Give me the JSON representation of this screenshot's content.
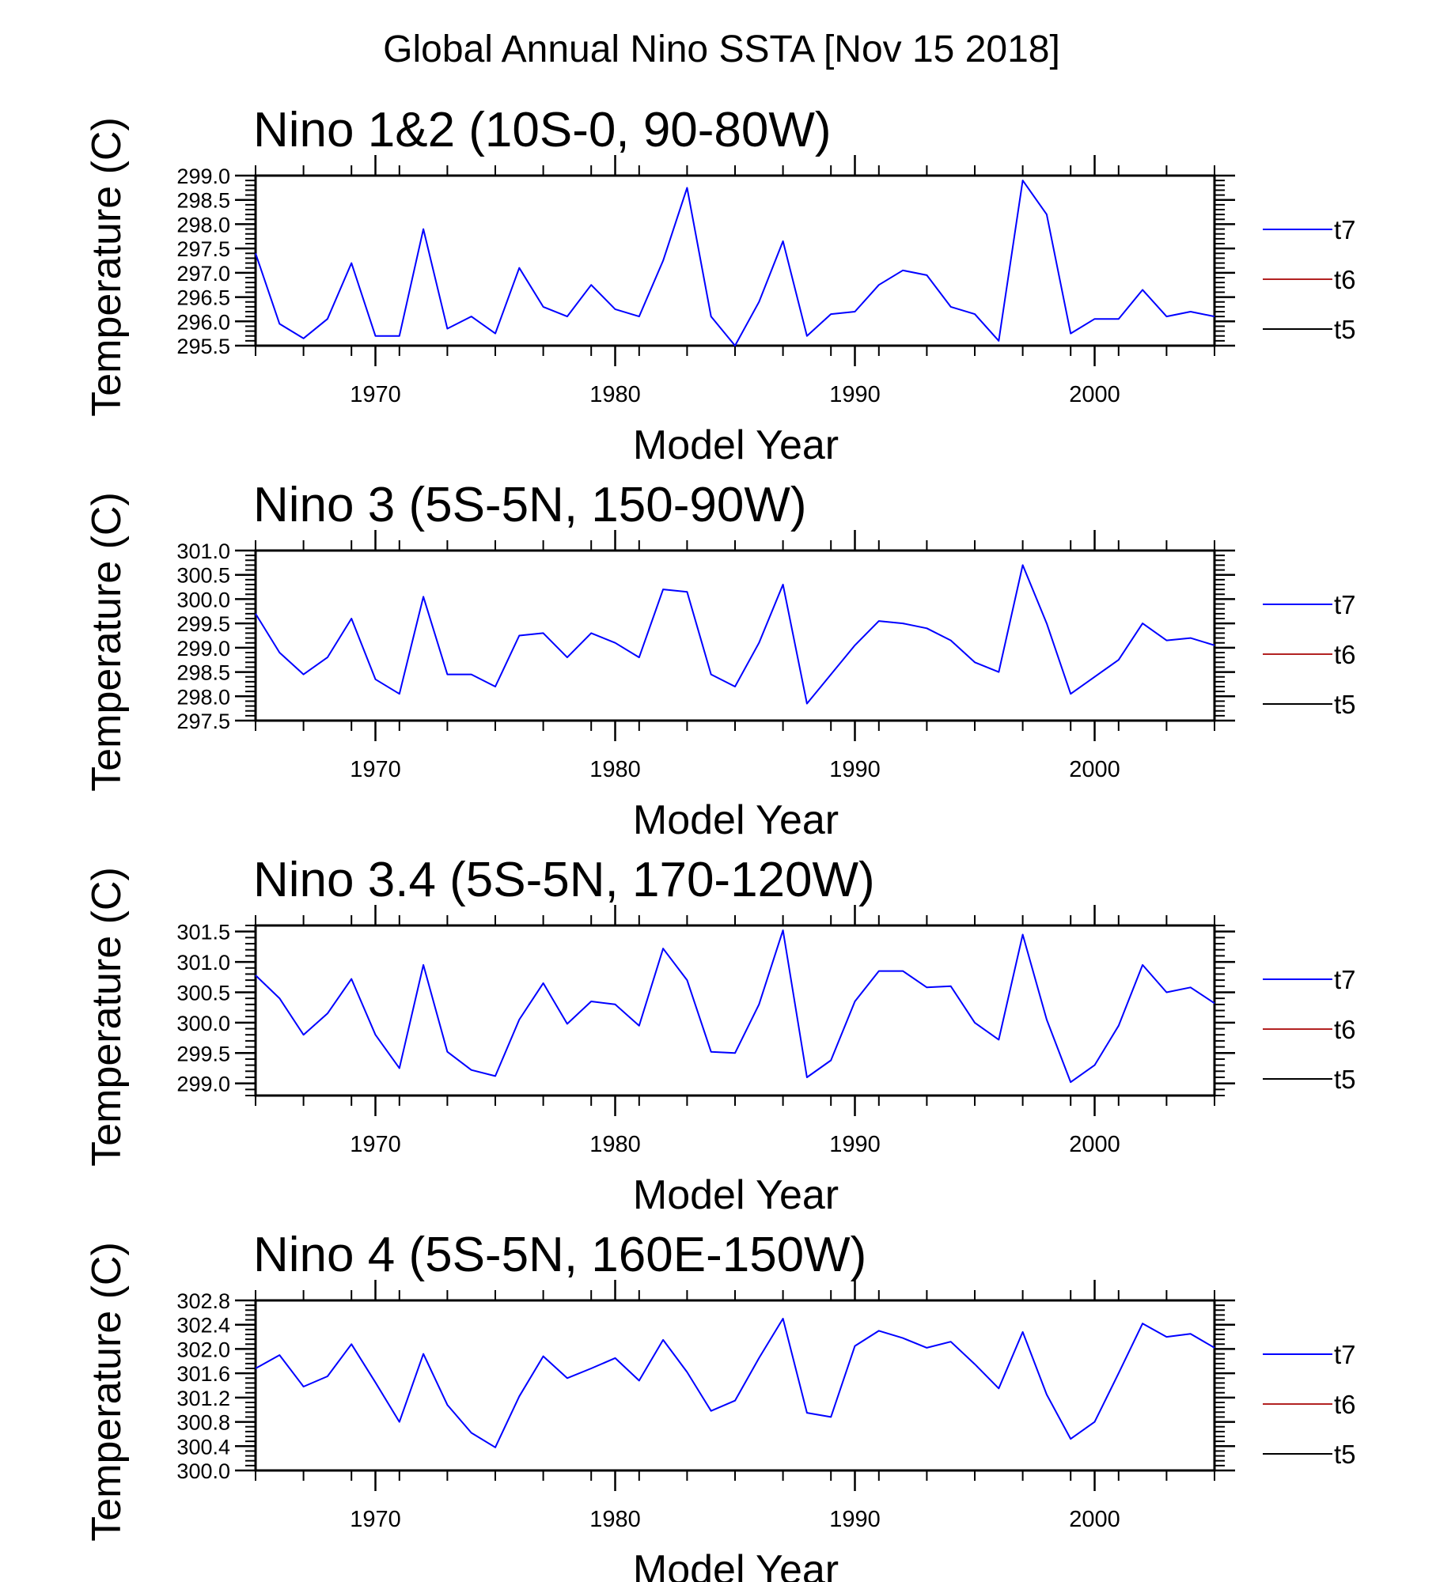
{
  "figure": {
    "title": "Global Annual Nino SSTA [Nov 15 2018]"
  },
  "chart_data": [
    {
      "type": "line",
      "title": "Nino 1&2 (10S-0, 90-80W)",
      "xlabel": "Model Year",
      "ylabel": "Temperature (C)",
      "xlim": [
        1965,
        2005
      ],
      "ylim": [
        295.5,
        299.0
      ],
      "xticks": [
        "1970",
        "1980",
        "1990",
        "2000"
      ],
      "yticks": [
        "295.5",
        "296.0",
        "296.5",
        "297.0",
        "297.5",
        "298.0",
        "298.5",
        "299.0"
      ],
      "legend": "right",
      "grid": false,
      "series": [
        {
          "name": "t7",
          "color": "#0000ff",
          "x": [
            1965,
            1966,
            1967,
            1968,
            1969,
            1970,
            1971,
            1972,
            1973,
            1974,
            1975,
            1976,
            1977,
            1978,
            1979,
            1980,
            1981,
            1982,
            1983,
            1984,
            1985,
            1986,
            1987,
            1988,
            1989,
            1990,
            1991,
            1992,
            1993,
            1994,
            1995,
            1996,
            1997,
            1998,
            1999,
            2000,
            2001,
            2002,
            2003,
            2004,
            2005
          ],
          "values": [
            297.4,
            295.95,
            295.65,
            296.05,
            297.2,
            295.7,
            295.7,
            297.9,
            295.85,
            296.1,
            295.75,
            297.1,
            296.3,
            296.1,
            296.75,
            296.25,
            296.1,
            297.25,
            298.75,
            296.1,
            295.5,
            296.4,
            297.65,
            295.7,
            296.15,
            296.2,
            296.75,
            297.05,
            296.95,
            296.3,
            296.15,
            295.6,
            298.9,
            298.2,
            295.75,
            296.05,
            296.05,
            296.65,
            296.1,
            296.2,
            296.1
          ]
        },
        {
          "name": "t6",
          "color": "#b22222",
          "values": []
        },
        {
          "name": "t5",
          "color": "#000000",
          "values": []
        }
      ]
    },
    {
      "type": "line",
      "title": "Nino 3 (5S-5N, 150-90W)",
      "xlabel": "Model Year",
      "ylabel": "Temperature (C)",
      "xlim": [
        1965,
        2005
      ],
      "ylim": [
        297.5,
        301.0
      ],
      "xticks": [
        "1970",
        "1980",
        "1990",
        "2000"
      ],
      "yticks": [
        "297.5",
        "298.0",
        "298.5",
        "299.0",
        "299.5",
        "300.0",
        "300.5",
        "301.0"
      ],
      "legend": "right",
      "grid": false,
      "series": [
        {
          "name": "t7",
          "color": "#0000ff",
          "x": [
            1965,
            1966,
            1967,
            1968,
            1969,
            1970,
            1971,
            1972,
            1973,
            1974,
            1975,
            1976,
            1977,
            1978,
            1979,
            1980,
            1981,
            1982,
            1983,
            1984,
            1985,
            1986,
            1987,
            1988,
            1989,
            1990,
            1991,
            1992,
            1993,
            1994,
            1995,
            1996,
            1997,
            1998,
            1999,
            2000,
            2001,
            2002,
            2003,
            2004,
            2005
          ],
          "values": [
            299.7,
            298.9,
            298.45,
            298.8,
            299.6,
            298.35,
            298.05,
            300.05,
            298.45,
            298.45,
            298.2,
            299.25,
            299.3,
            298.8,
            299.3,
            299.1,
            298.8,
            300.2,
            300.15,
            298.45,
            298.2,
            299.1,
            300.3,
            297.85,
            298.45,
            299.05,
            299.55,
            299.5,
            299.4,
            299.15,
            298.7,
            298.5,
            300.7,
            299.5,
            298.05,
            298.4,
            298.75,
            299.5,
            299.15,
            299.2,
            299.05
          ]
        },
        {
          "name": "t6",
          "color": "#b22222",
          "values": []
        },
        {
          "name": "t5",
          "color": "#000000",
          "values": []
        }
      ]
    },
    {
      "type": "line",
      "title": "Nino 3.4 (5S-5N, 170-120W)",
      "xlabel": "Model Year",
      "ylabel": "Temperature (C)",
      "xlim": [
        1965,
        2005
      ],
      "ylim": [
        298.8,
        301.6
      ],
      "xticks": [
        "1970",
        "1980",
        "1990",
        "2000"
      ],
      "yticks": [
        "299.0",
        "299.5",
        "300.0",
        "300.5",
        "301.0",
        "301.5"
      ],
      "legend": "right",
      "grid": false,
      "series": [
        {
          "name": "t7",
          "color": "#0000ff",
          "x": [
            1965,
            1966,
            1967,
            1968,
            1969,
            1970,
            1971,
            1972,
            1973,
            1974,
            1975,
            1976,
            1977,
            1978,
            1979,
            1980,
            1981,
            1982,
            1983,
            1984,
            1985,
            1986,
            1987,
            1988,
            1989,
            1990,
            1991,
            1992,
            1993,
            1994,
            1995,
            1996,
            1997,
            1998,
            1999,
            2000,
            2001,
            2002,
            2003,
            2004,
            2005
          ],
          "values": [
            300.78,
            300.4,
            299.8,
            300.15,
            300.72,
            299.8,
            299.25,
            300.95,
            299.52,
            299.22,
            299.12,
            300.05,
            300.65,
            299.98,
            300.35,
            300.3,
            299.95,
            301.22,
            300.7,
            299.52,
            299.5,
            300.3,
            301.52,
            299.1,
            299.38,
            300.35,
            300.85,
            300.85,
            300.58,
            300.6,
            300.0,
            299.72,
            301.45,
            300.05,
            299.02,
            299.3,
            299.95,
            300.95,
            300.5,
            300.58,
            300.32
          ]
        },
        {
          "name": "t6",
          "color": "#b22222",
          "values": []
        },
        {
          "name": "t5",
          "color": "#000000",
          "values": []
        }
      ]
    },
    {
      "type": "line",
      "title": "Nino 4 (5S-5N, 160E-150W)",
      "xlabel": "Model Year",
      "ylabel": "Temperature (C)",
      "xlim": [
        1965,
        2005
      ],
      "ylim": [
        300.0,
        302.8
      ],
      "xticks": [
        "1970",
        "1980",
        "1990",
        "2000"
      ],
      "yticks": [
        "300.0",
        "300.4",
        "300.8",
        "301.2",
        "301.6",
        "302.0",
        "302.4",
        "302.8"
      ],
      "legend": "right",
      "grid": false,
      "series": [
        {
          "name": "t7",
          "color": "#0000ff",
          "x": [
            1965,
            1966,
            1967,
            1968,
            1969,
            1970,
            1971,
            1972,
            1973,
            1974,
            1975,
            1976,
            1977,
            1978,
            1979,
            1980,
            1981,
            1982,
            1983,
            1984,
            1985,
            1986,
            1987,
            1988,
            1989,
            1990,
            1991,
            1992,
            1993,
            1994,
            1995,
            1996,
            1997,
            1998,
            1999,
            2000,
            2001,
            2002,
            2003,
            2004,
            2005
          ],
          "values": [
            301.68,
            301.9,
            301.38,
            301.55,
            302.08,
            301.45,
            300.8,
            301.92,
            301.08,
            300.62,
            300.38,
            301.22,
            301.88,
            301.52,
            301.68,
            301.85,
            301.48,
            302.15,
            301.62,
            300.98,
            301.15,
            301.85,
            302.5,
            300.95,
            300.88,
            302.05,
            302.3,
            302.18,
            302.02,
            302.12,
            301.75,
            301.35,
            302.28,
            301.25,
            300.52,
            300.8,
            301.6,
            302.42,
            302.2,
            302.25,
            302.02
          ]
        },
        {
          "name": "t6",
          "color": "#b22222",
          "values": []
        },
        {
          "name": "t5",
          "color": "#000000",
          "values": []
        }
      ]
    }
  ]
}
